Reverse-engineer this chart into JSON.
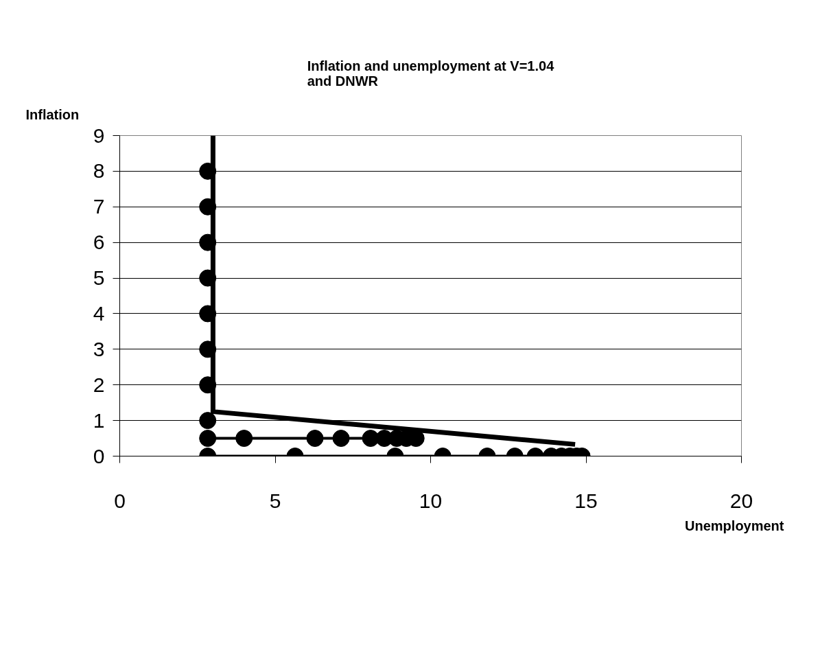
{
  "chart_data": {
    "type": "line",
    "title": "Inflation and unemployment at V=1.04\nand DNWR",
    "xlabel": "Unemployment",
    "ylabel": "Inflation",
    "xlim": [
      0,
      20
    ],
    "ylim": [
      0,
      9
    ],
    "xticks": [
      0,
      5,
      10,
      15,
      20
    ],
    "yticks": [
      0,
      1,
      2,
      3,
      4,
      5,
      6,
      7,
      8,
      9
    ],
    "grid": "y",
    "series": [
      {
        "color": "#000000",
        "marker": "none",
        "x": [
          3.0,
          3.0,
          14.65
        ],
        "values": [
          9,
          1.25,
          0.33
        ]
      },
      {
        "type": "scatter",
        "color": "#000000",
        "marker": "circle",
        "x": [
          2.83,
          2.83,
          2.83,
          2.83,
          2.83,
          2.83,
          2.83,
          2.83
        ],
        "values": [
          8,
          7,
          6,
          5,
          4,
          3,
          2,
          1
        ]
      },
      {
        "type": "line",
        "color": "#000000",
        "marker": "circle",
        "x": [
          2.83,
          4.0,
          6.28,
          7.12,
          8.07,
          8.51,
          8.91,
          9.22,
          9.53
        ],
        "values": [
          0.5,
          0.5,
          0.5,
          0.5,
          0.5,
          0.5,
          0.5,
          0.5,
          0.5
        ]
      },
      {
        "type": "line",
        "color": "#000000",
        "marker": "circle",
        "x": [
          2.83,
          5.64,
          8.86,
          10.39,
          11.82,
          12.71,
          13.37,
          13.88,
          14.21,
          14.48,
          14.7,
          14.87
        ],
        "values": [
          0,
          0,
          0,
          0,
          0,
          0,
          0,
          0,
          0,
          0,
          0,
          0
        ]
      }
    ]
  }
}
